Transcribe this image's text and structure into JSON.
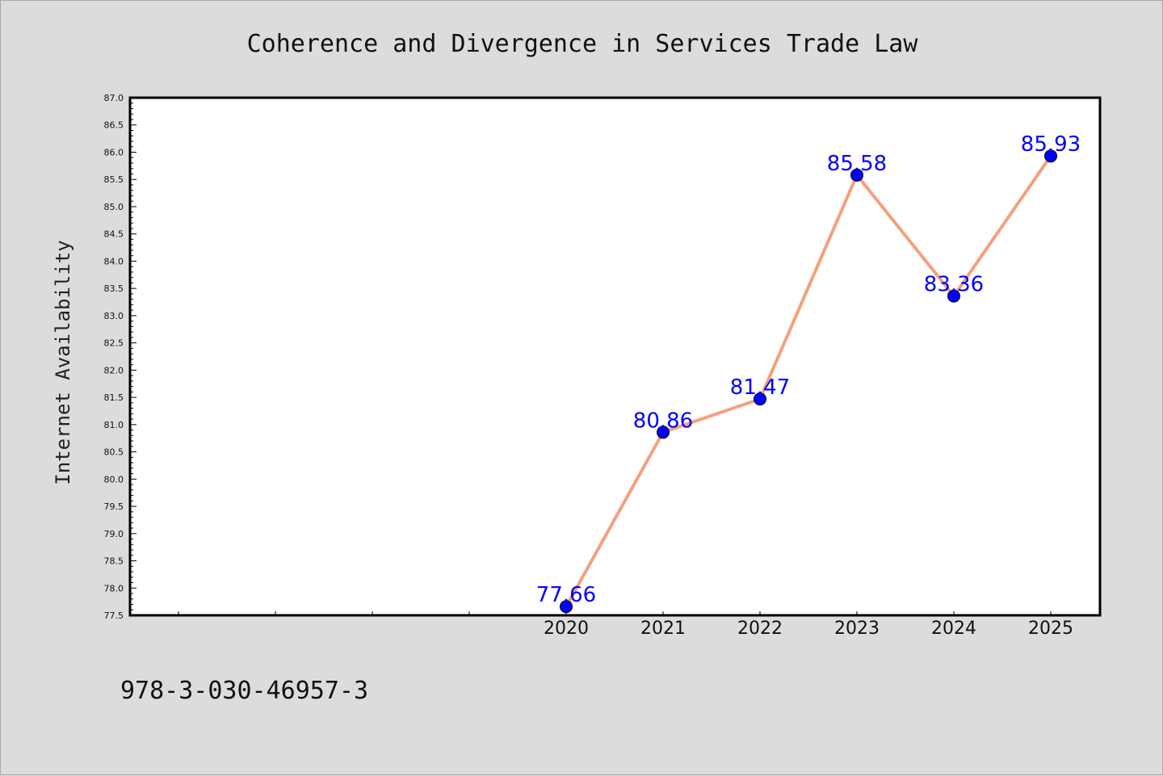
{
  "chart_data": {
    "type": "line",
    "title": "Coherence and Divergence in Services Trade Law",
    "xlabel": "",
    "ylabel": "Internet Availability",
    "categories": [
      "2020",
      "2021",
      "2022",
      "2023",
      "2024",
      "2025"
    ],
    "series": [
      {
        "values": [
          77.66,
          80.86,
          81.47,
          85.58,
          83.36,
          85.93
        ],
        "labels": [
          "77.66",
          "80.86",
          "81.47",
          "85.58",
          "83.36",
          "85.93"
        ]
      }
    ],
    "ylim": [
      77.5,
      87.0
    ],
    "yticks": [
      "77.5",
      "78.0",
      "78.5",
      "79.0",
      "79.5",
      "80.0",
      "80.5",
      "81.0",
      "81.5",
      "82.0",
      "82.5",
      "83.0",
      "83.5",
      "84.0",
      "84.5",
      "85.0",
      "85.5",
      "86.0",
      "86.5",
      "87.0"
    ],
    "grid": false,
    "legend": "none",
    "line_color": "#f4a07c",
    "marker_color": "#0000ff",
    "label_color": "#0000ff"
  },
  "footer": {
    "isbn": "978-3-030-46957-3"
  }
}
